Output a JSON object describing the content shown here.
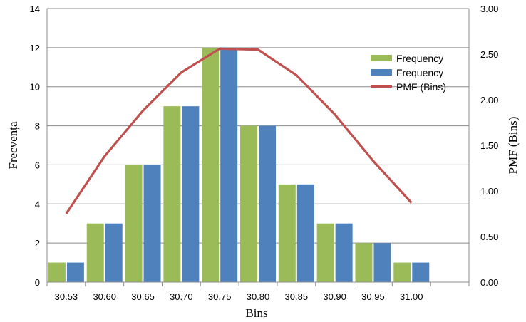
{
  "chart_data": {
    "type": "bar",
    "categories": [
      "30.53",
      "30.60",
      "30.65",
      "30.70",
      "30.75",
      "30.80",
      "30.85",
      "30.90",
      "30.95",
      "31.00",
      ""
    ],
    "series": [
      {
        "name": "Frequency",
        "kind": "bar",
        "axis": "left",
        "color": "#9BBB59",
        "values": [
          1,
          3,
          6,
          9,
          12,
          8,
          5,
          3,
          2,
          1,
          0
        ]
      },
      {
        "name": "Frequency",
        "kind": "bar",
        "axis": "left",
        "color": "#4F81BD",
        "values": [
          1,
          3,
          6,
          9,
          12,
          8,
          5,
          3,
          2,
          1,
          0
        ]
      },
      {
        "name": "PMF (Bins)",
        "kind": "line",
        "axis": "right",
        "color": "#C0504D",
        "values": [
          0.75,
          1.38,
          1.88,
          2.3,
          2.56,
          2.55,
          2.27,
          1.84,
          1.33,
          0.87,
          null
        ]
      }
    ],
    "xlabel": "Bins",
    "ylabel": "Frecvența",
    "y2label": "PMF (Bins)",
    "ylim": [
      0,
      14
    ],
    "y2lim": [
      0,
      3
    ],
    "yticks": [
      "0",
      "2",
      "4",
      "6",
      "8",
      "10",
      "12",
      "14"
    ],
    "y2ticks": [
      "0.00",
      "0.50",
      "1.00",
      "1.50",
      "2.00",
      "2.50",
      "3.00"
    ],
    "grid": true,
    "legend_position": "right-top"
  }
}
